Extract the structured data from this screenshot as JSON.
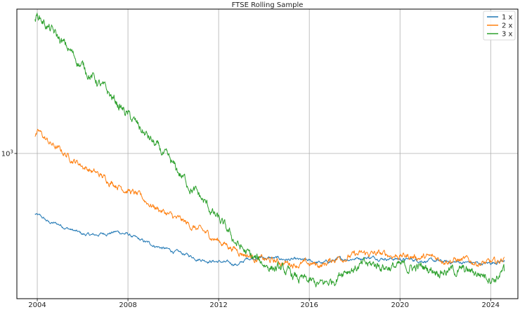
{
  "chart_data": {
    "type": "line",
    "title": "FTSE Rolling Sample",
    "xlabel": "",
    "ylabel": "",
    "y_scale": "log",
    "x_range": [
      2003.1,
      2025.2
    ],
    "y_range": [
      390,
      2550
    ],
    "x_ticks": [
      2004,
      2008,
      2012,
      2016,
      2020,
      2024
    ],
    "x_tick_labels": [
      "2004",
      "2008",
      "2012",
      "2016",
      "2020",
      "2024"
    ],
    "y_ticks": [
      1000
    ],
    "y_tick_labels": [
      {
        "base": "10",
        "exp": "3"
      }
    ],
    "grid": true,
    "legend_position": "top-right",
    "series": [
      {
        "name": "1 x",
        "color": "#1f77b4",
        "points": [
          [
            2003.9,
            675
          ],
          [
            2004.2,
            660
          ],
          [
            2004.5,
            640
          ],
          [
            2005.0,
            630
          ],
          [
            2005.5,
            610
          ],
          [
            2006.0,
            592
          ],
          [
            2006.5,
            588
          ],
          [
            2007.0,
            596
          ],
          [
            2007.5,
            602
          ],
          [
            2008.0,
            592
          ],
          [
            2008.5,
            570
          ],
          [
            2009.0,
            556
          ],
          [
            2009.5,
            542
          ],
          [
            2010.0,
            530
          ],
          [
            2010.5,
            520
          ],
          [
            2011.0,
            508
          ],
          [
            2011.5,
            500
          ],
          [
            2012.0,
            496
          ],
          [
            2012.5,
            490
          ],
          [
            2012.9,
            487
          ],
          [
            2013.3,
            507
          ],
          [
            2013.8,
            510
          ],
          [
            2014.5,
            506
          ],
          [
            2015.0,
            503
          ],
          [
            2015.5,
            500
          ],
          [
            2016.0,
            497
          ],
          [
            2016.6,
            491
          ],
          [
            2017.2,
            502
          ],
          [
            2018.0,
            507
          ],
          [
            2018.6,
            510
          ],
          [
            2019.2,
            508
          ],
          [
            2020.0,
            504
          ],
          [
            2021.0,
            500
          ],
          [
            2022.0,
            495
          ],
          [
            2023.0,
            493
          ],
          [
            2023.8,
            489
          ],
          [
            2024.3,
            496
          ],
          [
            2024.6,
            501
          ]
        ]
      },
      {
        "name": "2 x",
        "color": "#ff7f0e",
        "points": [
          [
            2003.9,
            1120
          ],
          [
            2004.1,
            1140
          ],
          [
            2004.5,
            1075
          ],
          [
            2005.0,
            1020
          ],
          [
            2005.5,
            970
          ],
          [
            2006.0,
            925
          ],
          [
            2006.5,
            885
          ],
          [
            2007.0,
            850
          ],
          [
            2007.5,
            820
          ],
          [
            2008.0,
            790
          ],
          [
            2008.5,
            755
          ],
          [
            2009.0,
            720
          ],
          [
            2009.5,
            690
          ],
          [
            2010.0,
            660
          ],
          [
            2010.5,
            638
          ],
          [
            2011.0,
            615
          ],
          [
            2011.5,
            592
          ],
          [
            2012.0,
            568
          ],
          [
            2012.5,
            548
          ],
          [
            2013.0,
            528
          ],
          [
            2013.5,
            511
          ],
          [
            2014.0,
            501
          ],
          [
            2014.5,
            496
          ],
          [
            2015.0,
            492
          ],
          [
            2015.5,
            489
          ],
          [
            2016.0,
            487
          ],
          [
            2016.6,
            485
          ],
          [
            2017.2,
            509
          ],
          [
            2018.0,
            516
          ],
          [
            2018.6,
            522
          ],
          [
            2019.2,
            519
          ],
          [
            2020.0,
            516
          ],
          [
            2021.0,
            510
          ],
          [
            2022.0,
            505
          ],
          [
            2023.0,
            497
          ],
          [
            2023.8,
            490
          ],
          [
            2024.3,
            492
          ],
          [
            2024.6,
            511
          ]
        ]
      },
      {
        "name": "3 x",
        "color": "#2ca02c",
        "points": [
          [
            2003.9,
            2400
          ],
          [
            2004.05,
            2450
          ],
          [
            2004.5,
            2260
          ],
          [
            2005.0,
            2080
          ],
          [
            2005.5,
            1920
          ],
          [
            2006.0,
            1760
          ],
          [
            2006.5,
            1630
          ],
          [
            2007.0,
            1500
          ],
          [
            2007.5,
            1390
          ],
          [
            2008.0,
            1280
          ],
          [
            2008.5,
            1180
          ],
          [
            2009.0,
            1090
          ],
          [
            2009.5,
            1000
          ],
          [
            2010.0,
            915
          ],
          [
            2010.5,
            845
          ],
          [
            2011.0,
            775
          ],
          [
            2011.5,
            710
          ],
          [
            2012.0,
            648
          ],
          [
            2012.5,
            588
          ],
          [
            2013.0,
            540
          ],
          [
            2013.5,
            505
          ],
          [
            2014.0,
            490
          ],
          [
            2014.5,
            476
          ],
          [
            2015.0,
            460
          ],
          [
            2015.5,
            443
          ],
          [
            2016.0,
            432
          ],
          [
            2016.5,
            425
          ],
          [
            2017.0,
            437
          ],
          [
            2017.5,
            473
          ],
          [
            2018.0,
            478
          ],
          [
            2018.5,
            483
          ],
          [
            2019.0,
            486
          ],
          [
            2019.5,
            481
          ],
          [
            2020.0,
            478
          ],
          [
            2021.0,
            477
          ],
          [
            2022.0,
            470
          ],
          [
            2023.0,
            465
          ],
          [
            2023.7,
            458
          ],
          [
            2024.2,
            448
          ],
          [
            2024.6,
            466
          ]
        ]
      }
    ]
  }
}
